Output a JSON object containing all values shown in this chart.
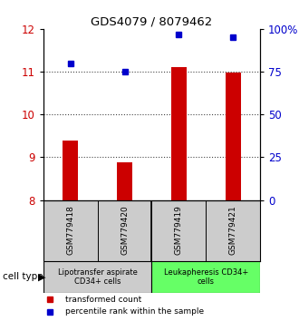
{
  "title": "GDS4079 / 8079462",
  "samples": [
    "GSM779418",
    "GSM779420",
    "GSM779419",
    "GSM779421"
  ],
  "bar_values": [
    9.38,
    8.88,
    11.1,
    10.98
  ],
  "bar_baseline": 8.0,
  "percentile_values": [
    80,
    75,
    97,
    95
  ],
  "ylim_left": [
    8,
    12
  ],
  "ylim_right": [
    0,
    100
  ],
  "yticks_left": [
    8,
    9,
    10,
    11,
    12
  ],
  "yticks_right": [
    0,
    25,
    50,
    75,
    100
  ],
  "ytick_labels_right": [
    "0",
    "25",
    "50",
    "75",
    "100%"
  ],
  "bar_color": "#cc0000",
  "dot_color": "#0000cc",
  "group1_label": "Lipotransfer aspirate\nCD34+ cells",
  "group2_label": "Leukapheresis CD34+\ncells",
  "group1_color": "#cccccc",
  "group2_color": "#66ff66",
  "group_border_color": "#000000",
  "cell_type_label": "cell type",
  "legend_bar_label": "transformed count",
  "legend_dot_label": "percentile rank within the sample",
  "dotted_line_color": "#444444",
  "background_color": "#ffffff",
  "plot_bg_color": "#ffffff",
  "sample_row_color": "#cccccc"
}
